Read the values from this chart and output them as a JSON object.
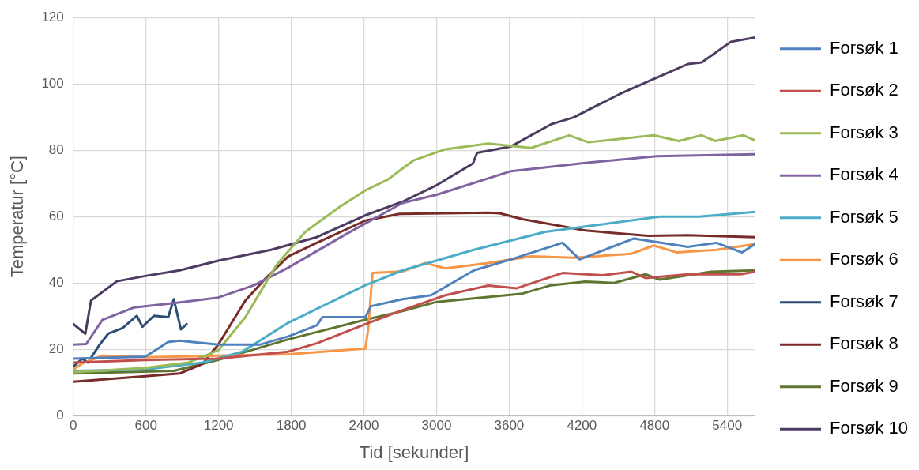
{
  "chart_data": {
    "type": "line",
    "xlabel": "Tid [sekunder]",
    "ylabel": "Temperatur [°C]",
    "xlim": [
      0,
      5630
    ],
    "xticks": [
      0,
      600,
      1200,
      1800,
      2400,
      3000,
      3600,
      4200,
      4800,
      5400
    ],
    "ylim": [
      0,
      120
    ],
    "yticks": [
      0,
      20,
      40,
      60,
      80,
      100,
      120
    ],
    "grid": true,
    "legend": "right",
    "marker": "none",
    "line_style": "solid",
    "series": [
      {
        "name": "Forsøk 1",
        "color": "#4f81bd",
        "x": [
          0,
          595,
          783,
          878,
          1197,
          1539,
          1775,
          2011,
          2058,
          2412,
          2459,
          2719,
          2955,
          3308,
          3615,
          4040,
          4182,
          4630,
          5076,
          5312,
          5523,
          5629
        ],
        "values": [
          17.2,
          17.8,
          22.2,
          22.6,
          21.4,
          21.4,
          23.9,
          27.2,
          29.7,
          29.7,
          33,
          35.1,
          36.3,
          43.8,
          47.1,
          52.1,
          47.1,
          53.4,
          50.9,
          52.1,
          49.2,
          51.7
        ]
      },
      {
        "name": "Forsøk 2",
        "color": "#c0504d",
        "x": [
          0,
          595,
          1197,
          1775,
          2011,
          2412,
          2719,
          3073,
          3427,
          3663,
          4040,
          4370,
          4606,
          4725,
          5076,
          5511,
          5629
        ],
        "values": [
          16,
          16.8,
          17.2,
          19.3,
          21.8,
          27.6,
          31.8,
          36.3,
          39.2,
          38.4,
          43,
          42.3,
          43.4,
          41.5,
          42.6,
          42.6,
          43.4
        ]
      },
      {
        "name": "Forsøk 3",
        "color": "#9bbb59",
        "x": [
          0,
          595,
          949,
          1197,
          1421,
          1680,
          1916,
          2199,
          2412,
          2600,
          2719,
          2813,
          3073,
          3427,
          3781,
          4095,
          4253,
          4795,
          5000,
          5190,
          5300,
          5535,
          5629
        ],
        "values": [
          13.1,
          14.4,
          16,
          19.7,
          29.7,
          45.5,
          55.4,
          62.9,
          67.9,
          71.2,
          74.5,
          77,
          80.3,
          82,
          80.7,
          84.5,
          82.4,
          84.5,
          82.8,
          84.5,
          82.8,
          84.5,
          83
        ]
      },
      {
        "name": "Forsøk 4",
        "color": "#8064a2",
        "x": [
          0,
          106,
          241,
          500,
          830,
          1197,
          1492,
          1775,
          2247,
          2719,
          3002,
          3615,
          4229,
          4819,
          5629
        ],
        "values": [
          21.4,
          21.6,
          28.9,
          32.6,
          33.9,
          35.6,
          39.3,
          44.6,
          54.6,
          64.1,
          66.6,
          73.7,
          76.2,
          78.2,
          78.8
        ]
      },
      {
        "name": "Forsøk 5",
        "color": "#4bacc6",
        "x": [
          0,
          595,
          1067,
          1397,
          1775,
          2412,
          2719,
          3308,
          3898,
          4229,
          4843,
          5170,
          5629
        ],
        "values": [
          13.5,
          13.9,
          16,
          19.3,
          28,
          39.3,
          43.8,
          50,
          55.4,
          57,
          60,
          60,
          61.4
        ]
      },
      {
        "name": "Forsøk 6",
        "color": "#f79646",
        "x": [
          0,
          68,
          241,
          595,
          1197,
          1775,
          2412,
          2436,
          2471,
          2719,
          2908,
          3073,
          3427,
          3781,
          4135,
          4607,
          4795,
          4984,
          5312,
          5629
        ],
        "values": [
          13.9,
          15.6,
          18.1,
          17.6,
          18.1,
          18.5,
          20.2,
          26.3,
          43,
          43.5,
          46,
          44.4,
          46,
          48,
          47.6,
          48.8,
          51.3,
          49.2,
          50,
          51.7
        ]
      },
      {
        "name": "Forsøk 7",
        "color": "#2c4d75",
        "x": [
          0,
          76,
          120,
          217,
          288,
          406,
          524,
          571,
          666,
          784,
          830,
          889,
          936
        ],
        "values": [
          14.8,
          17.2,
          16,
          21.4,
          24.7,
          26.4,
          30.1,
          26.8,
          30.1,
          29.7,
          35.1,
          26,
          27.6
        ]
      },
      {
        "name": "Forsøk 8",
        "color": "#772c2a",
        "x": [
          0,
          595,
          878,
          1067,
          1197,
          1421,
          1586,
          1775,
          2011,
          2412,
          2695,
          3427,
          3521,
          3710,
          4229,
          4748,
          5076,
          5629
        ],
        "values": [
          10.2,
          11.9,
          12.7,
          15.6,
          21.4,
          34.7,
          41.3,
          48,
          52.1,
          58.8,
          60.8,
          61.2,
          61,
          59.2,
          55.8,
          54.2,
          54.4,
          53.8
        ]
      },
      {
        "name": "Forsøk 9",
        "color": "#5f7530",
        "x": [
          0,
          830,
          1197,
          1775,
          2412,
          2719,
          3002,
          3710,
          3945,
          4229,
          4465,
          4725,
          4843,
          5267,
          5629
        ],
        "values": [
          12.7,
          13.5,
          16.8,
          23,
          28.9,
          31.5,
          34.3,
          36.8,
          39.3,
          40.4,
          40,
          42.6,
          41,
          43.4,
          43.8
        ]
      },
      {
        "name": "Forsøk 10",
        "color": "#4d3b62",
        "x": [
          0,
          99,
          146,
          359,
          595,
          878,
          1197,
          1633,
          2011,
          2412,
          2719,
          3002,
          3300,
          3335,
          3618,
          3944,
          4132,
          4510,
          4821,
          5076,
          5190,
          5431,
          5629
        ],
        "values": [
          27.6,
          24.7,
          34.7,
          40.5,
          42.1,
          43.8,
          46.7,
          50,
          53.8,
          60.4,
          64.5,
          69.5,
          76,
          79.2,
          81.2,
          87.8,
          89.9,
          96.9,
          101.9,
          106,
          106.5,
          112.7,
          114
        ]
      }
    ]
  }
}
